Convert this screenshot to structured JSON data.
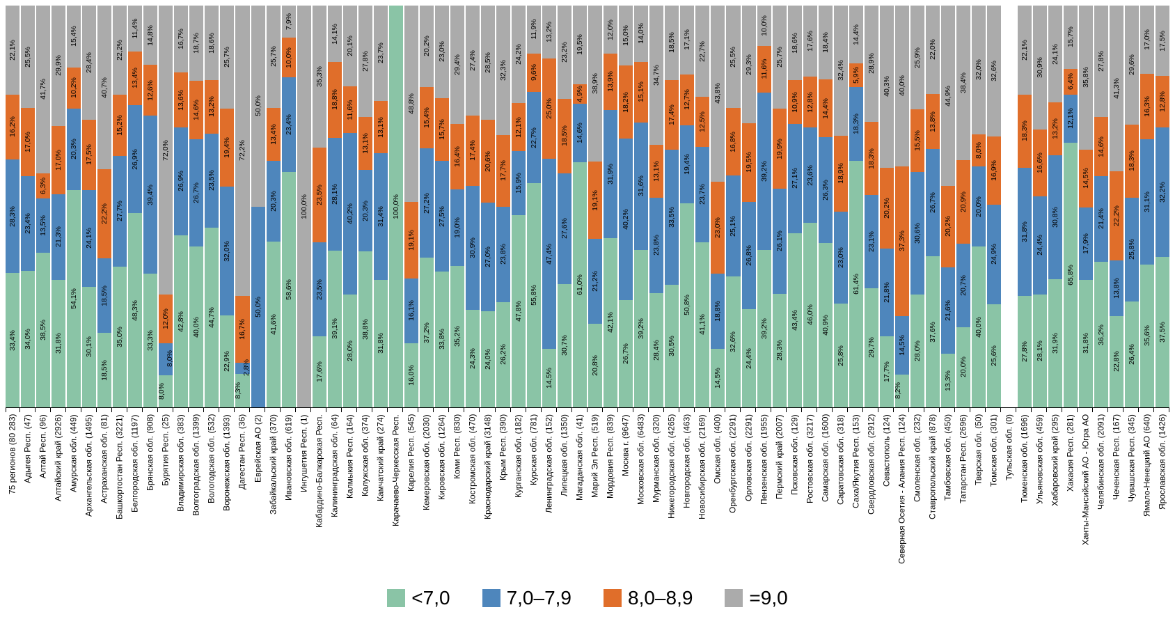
{
  "chart_data": {
    "type": "bar",
    "subtype": "stacked-100-percent",
    "title": "",
    "orientation": "vertical",
    "grid": false,
    "value_label_format": "##,#% (comma decimal, rotated 90deg)",
    "legend": {
      "position": "bottom-center",
      "entries": [
        {
          "label": "<7,0",
          "color": "#8AC4A6"
        },
        {
          "label": "7,0–7,9",
          "color": "#4E86BC"
        },
        {
          "label": "8,0–8,9",
          "color": "#E06E2A"
        },
        {
          "label": "=9,0",
          "color": "#ABABAB"
        }
      ]
    },
    "axis": {
      "line_color": "#000000",
      "tick_marks": true
    },
    "categories": [
      "75 регионов (80 283)",
      "Адыгея Респ. (47)",
      "Алтай Респ. (96)",
      "Алтайский край (2926)",
      "Амурская обл. (449)",
      "Архангельская обл. (1495)",
      "Астраханская обл. (81)",
      "Башкортостан Респ. (3221)",
      "Белгородская обл. (1197)",
      "Брянская обл. (908)",
      "Бурятия Респ. (25)",
      "Владимирская обл. (383)",
      "Волгоградская обл. (1399)",
      "Вологодская обл. (532)",
      "Воронежская обл. (1393)",
      "Дагестан Респ. (36)",
      "Еврейская АО (2)",
      "Забайкальский край (370)",
      "Ивановская обл. (619)",
      "Ингушетия Респ. (1)",
      "Кабардино-Балкарская Респ.",
      "Калининградская обл. (64)",
      "Калмыкия Респ. (164)",
      "Калужская обл. (374)",
      "Камчатский край (274)",
      "Карачаево-Черкесская Респ.",
      "Карелия Респ. (545)",
      "Кемеровская обл. (2030)",
      "Кировская обл. (1264)",
      "Коми Респ. (830)",
      "Костромская обл. (470)",
      "Краснодарский край (3148)",
      "Крым Респ. (390)",
      "Курганская обл. (182)",
      "Курская обл. (781)",
      "Ленинградская обл. (152)",
      "Липецкая обл. (1350)",
      "Магаданская обл. (41)",
      "Марий Эл Респ. (519)",
      "Мордовия Респ. (839)",
      "Москва г. (9647)",
      "Московская обл. (6483)",
      "Мурманская обл. (320)",
      "Нижегородская обл. (4265)",
      "Новгородская обл. (463)",
      "Новосибирская обл. (2169)",
      "Омская обл. (400)",
      "Оренбургская обл. (2291)",
      "Орловская обл. (2291)",
      "Пензенская обл. (1955)",
      "Пермский край (2007)",
      "Псковская обл. (129)",
      "Ростовская обл. (3217)",
      "Самарская обл. (1600)",
      "Саратовская обл. (318)",
      "Саха/Якутия Респ. (153)",
      "Свердловская обл. (2912)",
      "Севастополь (124)",
      "Северная Осетия - Алания Респ. (124)",
      "Смоленская обл. (232)",
      "Ставропольский край (878)",
      "Тамбовская обл. (450)",
      "Татарстан Респ. (2696)",
      "Тверская обл. (50)",
      "Томская обл. (301)",
      "Тульская обл. (0)",
      "Тюменская обл. (1696)",
      "Ульяновская обл. (459)",
      "Хабаровский край (295)",
      "Хакасия Респ. (281)",
      "Ханты-Мансийский АО - Югра АО",
      "Челябинская обл. (2091)",
      "Чеченская Респ. (167)",
      "Чувашская Респ. (345)",
      "Ямало-Ненецкий АО (640)",
      "Ярославская обл. (1426)"
    ],
    "series": [
      {
        "name": "<7,0",
        "color": "#8AC4A6",
        "values": [
          33.4,
          34.0,
          38.5,
          31.8,
          54.1,
          30.1,
          18.5,
          35.0,
          48.3,
          33.3,
          8.0,
          42.8,
          40.0,
          44.7,
          22.9,
          8.3,
          0,
          41.6,
          58.6,
          0,
          17.6,
          39.1,
          28.0,
          38.8,
          31.8,
          100.0,
          16.0,
          37.2,
          33.8,
          35.2,
          24.3,
          24.0,
          26.2,
          47.8,
          55.8,
          14.5,
          30.7,
          61.0,
          20.8,
          42.1,
          26.7,
          39.2,
          28.4,
          30.5,
          50.8,
          41.1,
          14.5,
          32.6,
          24.4,
          39.2,
          28.3,
          43.4,
          46.0,
          40.9,
          25.8,
          61.4,
          29.7,
          17.7,
          8.2,
          28.0,
          37.6,
          13.3,
          20.0,
          40.0,
          25.6,
          null,
          27.8,
          28.1,
          31.9,
          65.8,
          31.8,
          36.2,
          22.8,
          26.4,
          35.6,
          37.5
        ]
      },
      {
        "name": "7,0–7,9",
        "color": "#4E86BC",
        "values": [
          28.3,
          23.4,
          13.5,
          21.3,
          20.3,
          24.1,
          18.5,
          27.7,
          26.9,
          39.4,
          8.0,
          26.9,
          26.7,
          23.5,
          32.0,
          2.8,
          50.0,
          20.3,
          23.4,
          0,
          23.5,
          28.1,
          40.2,
          20.3,
          31.4,
          0,
          16.1,
          27.2,
          27.5,
          19.0,
          30.9,
          27.0,
          23.8,
          15.9,
          22.7,
          47.4,
          27.6,
          14.6,
          21.2,
          31.9,
          40.2,
          31.6,
          23.8,
          33.5,
          19.4,
          23.7,
          18.8,
          25.1,
          26.8,
          39.2,
          26.1,
          27.1,
          23.6,
          26.3,
          23.0,
          18.3,
          23.1,
          21.8,
          14.5,
          30.6,
          26.7,
          21.6,
          20.7,
          20.0,
          24.9,
          null,
          31.8,
          24.4,
          30.8,
          12.1,
          17.9,
          21.4,
          13.8,
          25.8,
          31.1,
          32.2
        ]
      },
      {
        "name": "8,0–8,9",
        "color": "#E06E2A",
        "values": [
          16.2,
          17.0,
          6.3,
          17.0,
          10.2,
          17.5,
          22.2,
          15.2,
          13.4,
          12.6,
          12.0,
          13.6,
          14.6,
          13.2,
          19.4,
          16.7,
          0,
          13.4,
          10.0,
          0,
          23.5,
          18.8,
          11.6,
          13.1,
          13.1,
          0,
          19.1,
          15.4,
          15.7,
          16.4,
          17.4,
          20.6,
          17.7,
          12.1,
          9.6,
          25.0,
          18.5,
          4.9,
          19.1,
          13.9,
          18.2,
          15.1,
          13.1,
          17.4,
          12.7,
          12.5,
          23.0,
          16.8,
          19.5,
          11.6,
          19.9,
          10.9,
          12.8,
          14.4,
          18.9,
          5.9,
          18.3,
          20.2,
          37.3,
          15.5,
          13.8,
          20.2,
          20.9,
          8.0,
          16.9,
          null,
          18.3,
          16.6,
          13.2,
          6.4,
          14.5,
          14.6,
          22.2,
          18.3,
          16.3,
          12.8
        ]
      },
      {
        "name": "=9,0",
        "color": "#ABABAB",
        "values": [
          22.1,
          25.5,
          41.7,
          29.9,
          15.4,
          28.4,
          40.7,
          22.2,
          11.4,
          14.8,
          72.0,
          16.7,
          18.7,
          18.6,
          25.7,
          72.2,
          50.0,
          25.7,
          7.9,
          100.0,
          35.3,
          14.1,
          20.1,
          27.8,
          23.7,
          0,
          48.8,
          20.2,
          23.0,
          29.4,
          27.4,
          28.5,
          32.3,
          24.2,
          11.9,
          13.2,
          23.2,
          19.5,
          38.9,
          12.0,
          15.0,
          14.0,
          34.7,
          18.5,
          17.1,
          22.7,
          43.8,
          25.5,
          29.3,
          10.0,
          25.7,
          18.6,
          17.6,
          18.4,
          32.4,
          14.4,
          28.9,
          40.3,
          40.0,
          25.9,
          22.0,
          44.9,
          38.4,
          32.0,
          32.6,
          null,
          22.1,
          30.9,
          24.1,
          15.7,
          35.8,
          27.8,
          41.3,
          29.6,
          17.0,
          17.5
        ]
      }
    ]
  }
}
